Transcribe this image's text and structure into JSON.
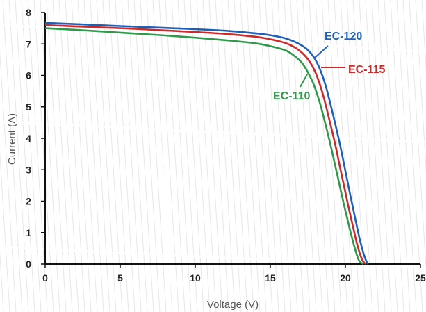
{
  "chart_data": {
    "type": "line",
    "xlabel": "Voltage (V)",
    "ylabel": "Current (A)",
    "xlim": [
      0,
      25
    ],
    "ylim": [
      0,
      8
    ],
    "x_ticks": [
      "0",
      "5",
      "10",
      "15",
      "20",
      "25"
    ],
    "y_ticks": [
      "0",
      "1",
      "2",
      "3",
      "4",
      "5",
      "6",
      "7",
      "8"
    ],
    "grid": false,
    "series": [
      {
        "name": "EC-120",
        "color": "#1f5fb5",
        "x": [
          0,
          2,
          4,
          6,
          8,
          10,
          12,
          14,
          15,
          16,
          16.8,
          17.4,
          17.9,
          18.3,
          18.7,
          19.1,
          19.5,
          19.9,
          20.3,
          20.7,
          21.0,
          21.3,
          21.5
        ],
        "y": [
          7.67,
          7.63,
          7.59,
          7.55,
          7.51,
          7.47,
          7.42,
          7.34,
          7.28,
          7.18,
          7.03,
          6.85,
          6.58,
          6.2,
          5.65,
          4.9,
          4.1,
          3.2,
          2.25,
          1.35,
          0.7,
          0.2,
          0
        ]
      },
      {
        "name": "EC-115",
        "color": "#cc2a2a",
        "x": [
          0,
          2,
          4,
          6,
          8,
          10,
          12,
          14,
          15,
          16,
          16.7,
          17.2,
          17.7,
          18.1,
          18.5,
          18.9,
          19.3,
          19.7,
          20.1,
          20.5,
          20.8,
          21.1,
          21.35
        ],
        "y": [
          7.6,
          7.56,
          7.52,
          7.48,
          7.43,
          7.38,
          7.32,
          7.23,
          7.15,
          7.03,
          6.87,
          6.68,
          6.38,
          5.98,
          5.4,
          4.65,
          3.85,
          2.95,
          2.05,
          1.2,
          0.6,
          0.15,
          0
        ]
      },
      {
        "name": "EC-110",
        "color": "#2e9a49",
        "x": [
          0,
          2,
          4,
          6,
          8,
          10,
          12,
          14,
          15,
          16,
          16.6,
          17.1,
          17.5,
          17.9,
          18.3,
          18.7,
          19.1,
          19.5,
          19.9,
          20.3,
          20.6,
          20.9,
          21.2
        ],
        "y": [
          7.5,
          7.45,
          7.39,
          7.33,
          7.27,
          7.2,
          7.12,
          7.02,
          6.93,
          6.8,
          6.62,
          6.4,
          6.1,
          5.7,
          5.12,
          4.4,
          3.6,
          2.75,
          1.9,
          1.1,
          0.55,
          0.12,
          0
        ]
      }
    ]
  },
  "labels": {
    "ec120": "EC-120",
    "ec115": "EC-115",
    "ec110": "EC-110"
  }
}
